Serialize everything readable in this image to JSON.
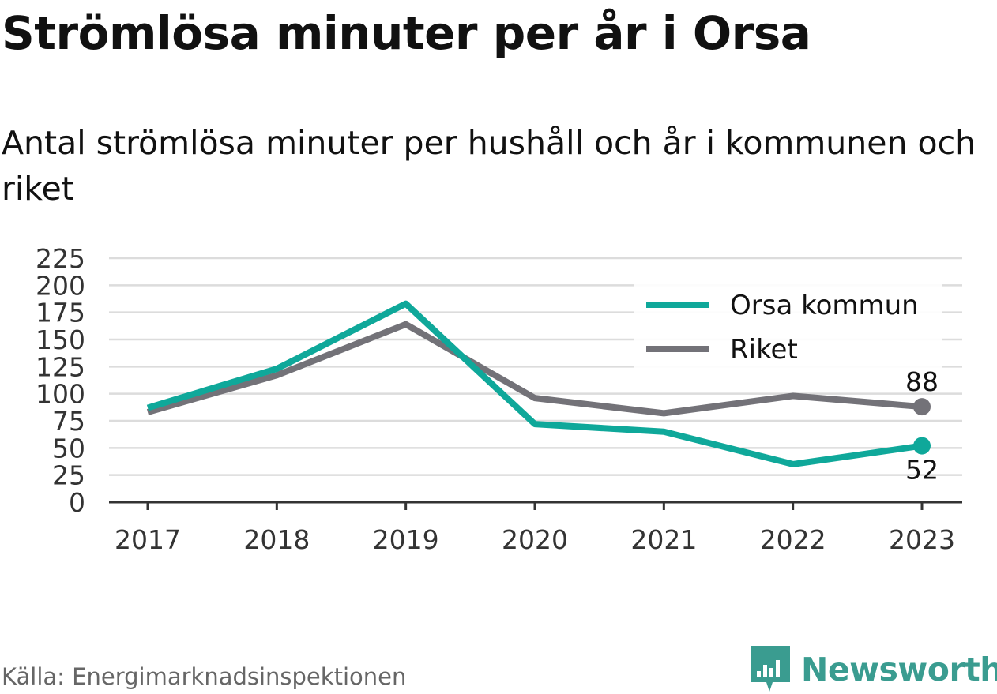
{
  "title": "Strömlösa minuter per år i Orsa",
  "subtitle": "Antal strömlösa minuter per hushåll och år i kommunen och riket",
  "source": "Källa: Energimarknadsinspektionen",
  "brand": {
    "name": "Newsworthy",
    "icon": "newsworthy-logo-icon",
    "color": "#3a9c90"
  },
  "chart_data": {
    "type": "line",
    "title": "Strömlösa minuter per år i Orsa",
    "subtitle": "Antal strömlösa minuter per hushåll och år i kommunen och riket",
    "x": [
      "2017",
      "2018",
      "2019",
      "2020",
      "2021",
      "2022",
      "2023"
    ],
    "ylim": [
      0,
      225
    ],
    "yticks": [
      0,
      25,
      50,
      75,
      100,
      125,
      150,
      175,
      200,
      225
    ],
    "grid": true,
    "legend": "top-right",
    "series": [
      {
        "name": "Orsa kommun",
        "color": "#0fa89a",
        "values": [
          87,
          123,
          183,
          72,
          65,
          35,
          52
        ],
        "end_label": "52"
      },
      {
        "name": "Riket",
        "color": "#737278",
        "values": [
          83,
          117,
          164,
          96,
          82,
          98,
          88
        ],
        "end_label": "88"
      }
    ]
  }
}
